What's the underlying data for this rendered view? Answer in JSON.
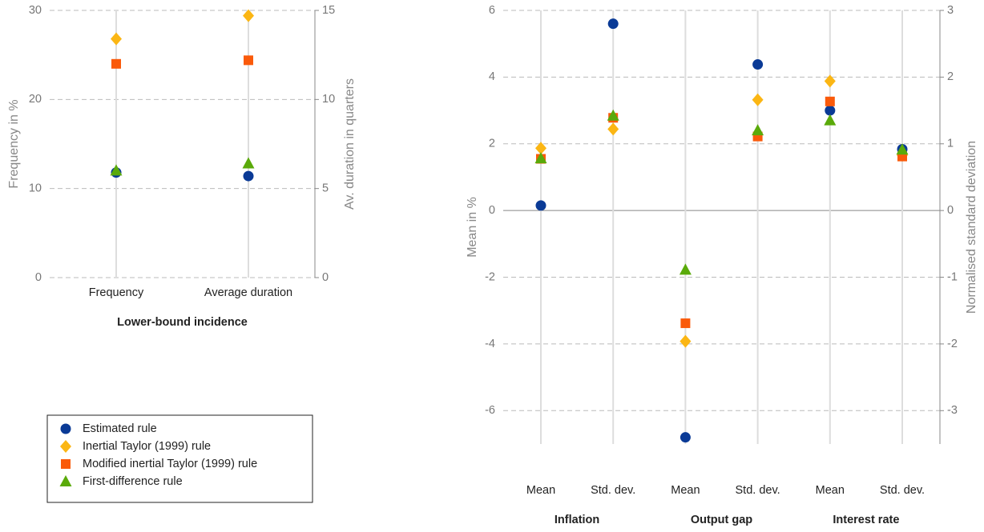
{
  "chart_data": [
    {
      "type": "scatter",
      "categories": [
        "Frequency",
        "Average duration"
      ],
      "category_axes": [
        "y",
        "y2"
      ],
      "xlabel": "Lower-bound incidence",
      "ylabel": "Frequency in %",
      "y2label": "Av. duration in quarters",
      "ylim": [
        0,
        30
      ],
      "yticks": [
        0,
        10,
        20,
        30
      ],
      "y2lim": [
        0,
        15
      ],
      "y2ticks": [
        0,
        5,
        10,
        15
      ],
      "grid": true,
      "series": [
        {
          "name": "Estimated rule",
          "color": "#0a3a96",
          "marker": "circle",
          "values": [
            11.8,
            5.7
          ]
        },
        {
          "name": "Inertial Taylor (1999) rule",
          "color": "#fbb614",
          "marker": "diamond",
          "values": [
            26.8,
            14.7
          ]
        },
        {
          "name": "Modified inertial Taylor (1999) rule",
          "color": "#fa5a0a",
          "marker": "square",
          "values": [
            24.0,
            12.2
          ]
        },
        {
          "name": "First-difference rule",
          "color": "#5aaa0a",
          "marker": "triangle",
          "values": [
            12.0,
            6.4
          ]
        }
      ]
    },
    {
      "type": "scatter",
      "categories": [
        "Mean",
        "Std. dev.",
        "Mean",
        "Std. dev.",
        "Mean",
        "Std. dev."
      ],
      "category_axes": [
        "y",
        "y2",
        "y",
        "y2",
        "y",
        "y2"
      ],
      "group_labels": [
        "Inflation",
        "Output gap",
        "Interest rate"
      ],
      "ylabel": "Mean in %",
      "y2label": "Normalised standard deviation",
      "ylim": [
        -7,
        6
      ],
      "yticks": [
        -6,
        -4,
        -2,
        0,
        2,
        4,
        6
      ],
      "y2lim": [
        -3.5,
        3
      ],
      "y2ticks": [
        -3,
        -2,
        -1,
        0,
        1,
        2,
        3
      ],
      "grid": true,
      "series": [
        {
          "color": "#0a3a96",
          "marker": "circle",
          "values": [
            0.15,
            2.8,
            -6.8,
            2.19,
            3.0,
            0.92
          ]
        },
        {
          "color": "#fbb614",
          "marker": "diamond",
          "values": [
            1.87,
            1.22,
            -3.92,
            1.66,
            3.88,
            0.83
          ]
        },
        {
          "color": "#fa5a0a",
          "marker": "square",
          "values": [
            1.55,
            1.39,
            -3.38,
            1.11,
            3.27,
            0.81
          ]
        },
        {
          "color": "#5aaa0a",
          "marker": "triangle",
          "values": [
            1.56,
            1.42,
            -1.78,
            1.2,
            2.7,
            0.91
          ]
        }
      ]
    }
  ]
}
